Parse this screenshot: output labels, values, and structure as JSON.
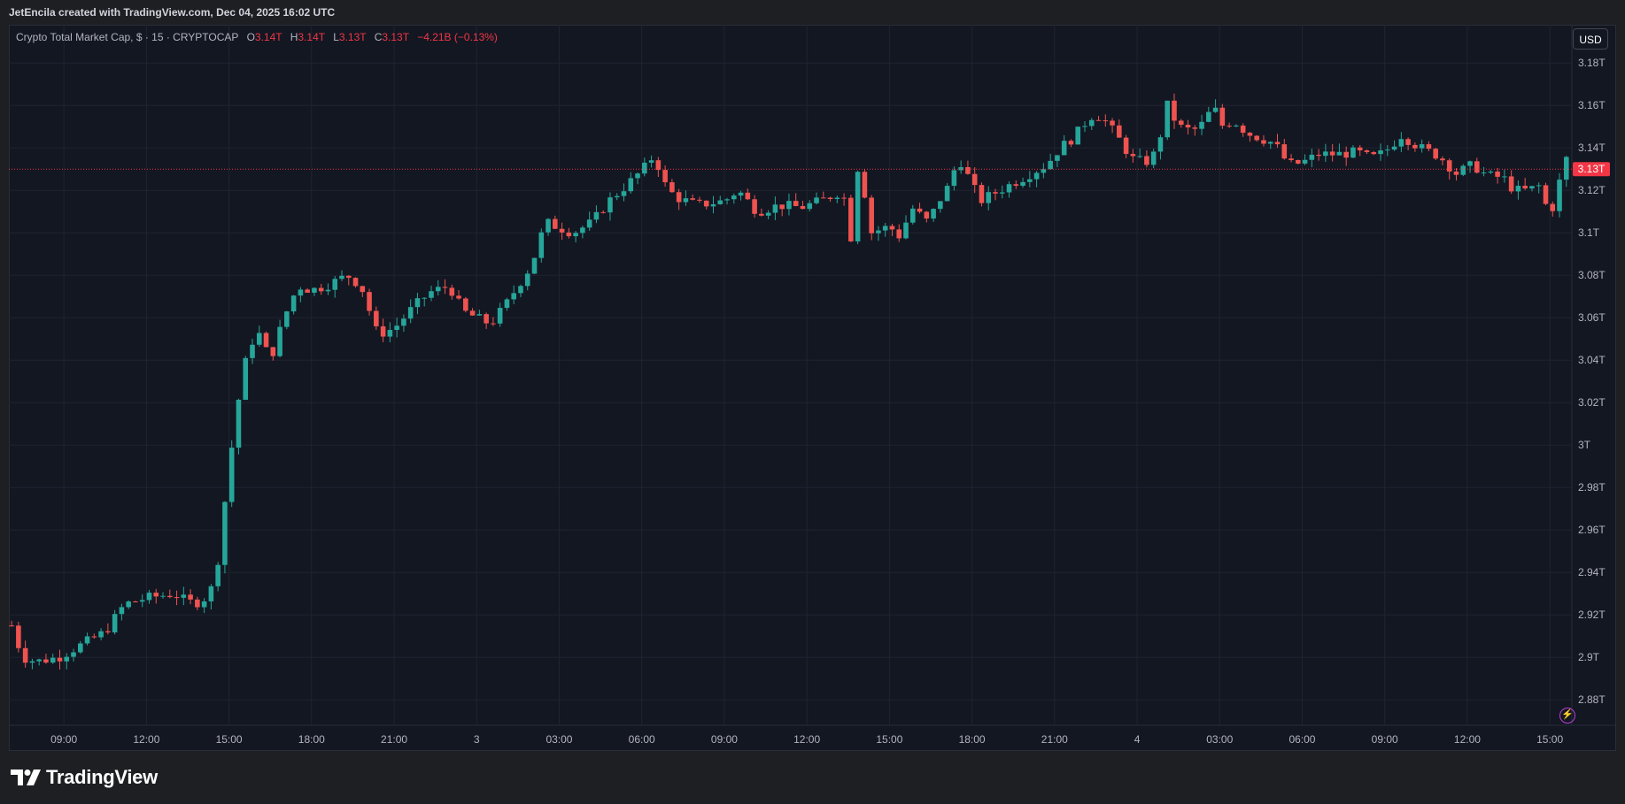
{
  "header": {
    "attribution": "JetEncila created with TradingView.com, Dec 04, 2025 16:02 UTC"
  },
  "legend": {
    "symbol": "Crypto Total Market Cap, $ · 15 · CRYPTOCAP",
    "o_label": "O",
    "o_value": "3.14T",
    "h_label": "H",
    "h_value": "3.14T",
    "l_label": "L",
    "l_value": "3.13T",
    "c_label": "C",
    "c_value": "3.13T",
    "change": "−4.21B (−0.13%)"
  },
  "currency_button": "USD",
  "brand": {
    "name": "TradingView"
  },
  "colors": {
    "up": "#26a69a",
    "down": "#ef5350",
    "background": "#131722",
    "grid": "#1f2430",
    "text": "#b2b5be",
    "price_tag": "#f23645"
  },
  "icons": {
    "logo": "tradingview-logo-icon",
    "zap": "lightning-icon"
  },
  "chart_data": {
    "type": "candlestick",
    "interval": "15",
    "y_axis": {
      "ticks": [
        2.88,
        2.9,
        2.92,
        2.94,
        2.96,
        2.98,
        3.0,
        3.02,
        3.04,
        3.06,
        3.08,
        3.1,
        3.12,
        3.14,
        3.16,
        3.18
      ],
      "tick_labels": [
        "2.88T",
        "2.9T",
        "2.92T",
        "2.94T",
        "2.96T",
        "2.98T",
        "3T",
        "3.02T",
        "3.04T",
        "3.06T",
        "3.08T",
        "3.1T",
        "3.12T",
        "3.14T",
        "3.16T",
        "3.18T"
      ],
      "unit": "T",
      "range": [
        2.868,
        3.198
      ]
    },
    "x_axis": {
      "range": [
        7.0,
        63.8
      ],
      "ticks": [
        9,
        12,
        15,
        18,
        21,
        24,
        27,
        30,
        33,
        36,
        39,
        42,
        45,
        48,
        51,
        54,
        57,
        60,
        63
      ],
      "tick_labels": [
        "09:00",
        "12:00",
        "15:00",
        "18:00",
        "21:00",
        "3",
        "03:00",
        "06:00",
        "09:00",
        "12:00",
        "15:00",
        "18:00",
        "21:00",
        "4",
        "03:00",
        "06:00",
        "09:00",
        "12:00",
        "15:00"
      ]
    },
    "last_price": {
      "value": 3.13,
      "label": "3.13T"
    },
    "keypoints": [
      [
        7.1,
        2.915
      ],
      [
        7.5,
        2.9
      ],
      [
        8.0,
        2.898
      ],
      [
        8.8,
        2.9
      ],
      [
        9.5,
        2.905
      ],
      [
        10.5,
        2.912
      ],
      [
        11.2,
        2.925
      ],
      [
        12.0,
        2.928
      ],
      [
        13.0,
        2.93
      ],
      [
        13.5,
        2.926
      ],
      [
        14.0,
        2.926
      ],
      [
        14.5,
        2.935
      ],
      [
        15.0,
        2.99
      ],
      [
        15.5,
        3.035
      ],
      [
        16.0,
        3.055
      ],
      [
        16.5,
        3.04
      ],
      [
        17.0,
        3.06
      ],
      [
        17.5,
        3.075
      ],
      [
        18.0,
        3.073
      ],
      [
        18.5,
        3.075
      ],
      [
        19.0,
        3.078
      ],
      [
        19.3,
        3.08
      ],
      [
        19.8,
        3.075
      ],
      [
        20.4,
        3.052
      ],
      [
        21.0,
        3.055
      ],
      [
        21.7,
        3.065
      ],
      [
        22.3,
        3.072
      ],
      [
        23.0,
        3.075
      ],
      [
        23.5,
        3.063
      ],
      [
        24.0,
        3.06
      ],
      [
        24.5,
        3.057
      ],
      [
        25.0,
        3.065
      ],
      [
        26.0,
        3.085
      ],
      [
        26.5,
        3.105
      ],
      [
        27.5,
        3.1
      ],
      [
        28.2,
        3.105
      ],
      [
        28.8,
        3.115
      ],
      [
        29.5,
        3.123
      ],
      [
        30.2,
        3.132
      ],
      [
        30.5,
        3.138
      ],
      [
        30.7,
        3.125
      ],
      [
        31.2,
        3.117
      ],
      [
        32.0,
        3.113
      ],
      [
        33.0,
        3.115
      ],
      [
        33.5,
        3.12
      ],
      [
        34.2,
        3.11
      ],
      [
        35.0,
        3.113
      ],
      [
        35.8,
        3.112
      ],
      [
        36.5,
        3.115
      ],
      [
        37.3,
        3.12
      ],
      [
        37.6,
        3.098
      ],
      [
        37.9,
        3.137
      ],
      [
        38.3,
        3.1
      ],
      [
        39.0,
        3.103
      ],
      [
        39.4,
        3.098
      ],
      [
        39.8,
        3.112
      ],
      [
        40.4,
        3.105
      ],
      [
        40.8,
        3.115
      ],
      [
        41.2,
        3.123
      ],
      [
        41.5,
        3.136
      ],
      [
        41.8,
        3.128
      ],
      [
        42.3,
        3.115
      ],
      [
        43.0,
        3.12
      ],
      [
        44.0,
        3.127
      ],
      [
        44.7,
        3.132
      ],
      [
        45.2,
        3.14
      ],
      [
        45.7,
        3.145
      ],
      [
        46.3,
        3.155
      ],
      [
        46.7,
        3.155
      ],
      [
        47.3,
        3.145
      ],
      [
        47.8,
        3.135
      ],
      [
        48.3,
        3.133
      ],
      [
        48.7,
        3.138
      ],
      [
        49.1,
        3.16
      ],
      [
        49.5,
        3.15
      ],
      [
        50.0,
        3.148
      ],
      [
        50.3,
        3.15
      ],
      [
        50.8,
        3.16
      ],
      [
        51.0,
        3.15
      ],
      [
        51.5,
        3.153
      ],
      [
        52.0,
        3.147
      ],
      [
        53.0,
        3.142
      ],
      [
        53.5,
        3.132
      ],
      [
        54.0,
        3.133
      ],
      [
        54.6,
        3.137
      ],
      [
        55.3,
        3.137
      ],
      [
        56.0,
        3.138
      ],
      [
        56.5,
        3.135
      ],
      [
        57.0,
        3.138
      ],
      [
        57.6,
        3.146
      ],
      [
        58.3,
        3.14
      ],
      [
        59.0,
        3.136
      ],
      [
        59.6,
        3.128
      ],
      [
        60.2,
        3.132
      ],
      [
        60.7,
        3.127
      ],
      [
        61.3,
        3.126
      ],
      [
        61.7,
        3.12
      ],
      [
        62.2,
        3.12
      ],
      [
        62.6,
        3.122
      ],
      [
        63.0,
        3.108
      ],
      [
        63.3,
        3.12
      ],
      [
        63.5,
        3.136
      ],
      [
        63.75,
        3.133
      ]
    ]
  }
}
